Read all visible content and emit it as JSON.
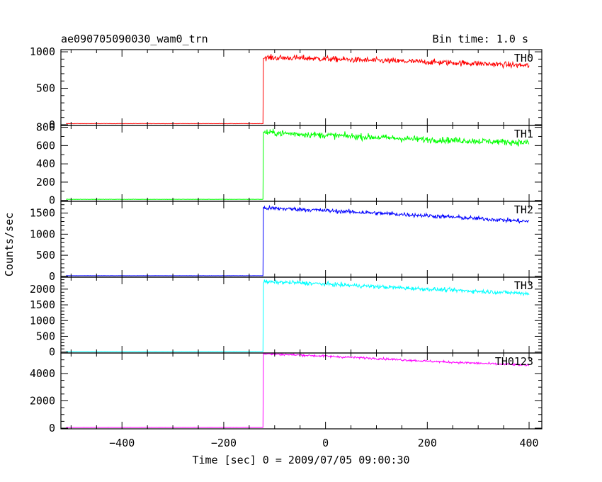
{
  "chart_data": {
    "type": "line",
    "title": "ae090705090030_wam0_trn",
    "subtitle": "Bin time: 1.0 s",
    "xlabel": "Time [sec] 0 = 2009/07/05 09:00:30",
    "ylabel": "Counts/sec",
    "xlim": [
      -520,
      425
    ],
    "x_ticks": [
      -400,
      -200,
      0,
      200,
      400
    ],
    "x_tick_labels": [
      "−400",
      "−200",
      "0",
      "200",
      "400"
    ],
    "grid": false,
    "legend": "per-panel label top-right",
    "trigger_time": -122,
    "data_start": -510,
    "data_end": 400,
    "panels": [
      {
        "name": "TH0",
        "color": "#ff0000",
        "ylim": [
          -10,
          1030
        ],
        "yticks": [
          0,
          500,
          1000
        ],
        "yticks_minor": [
          100,
          200,
          300,
          400,
          600,
          700,
          800,
          900
        ],
        "pre_level": 15,
        "profile": [
          [
            -122,
            920
          ],
          [
            -50,
            915
          ],
          [
            100,
            880
          ],
          [
            200,
            860
          ],
          [
            300,
            840
          ],
          [
            400,
            810
          ]
        ],
        "noise": 40
      },
      {
        "name": "TH1",
        "color": "#00ff00",
        "ylim": [
          -10,
          820
        ],
        "yticks": [
          0,
          200,
          400,
          600,
          800
        ],
        "yticks_minor": [
          100,
          300,
          500,
          700
        ],
        "pre_level": 12,
        "profile": [
          [
            -122,
            745
          ],
          [
            -50,
            725
          ],
          [
            100,
            690
          ],
          [
            200,
            665
          ],
          [
            300,
            650
          ],
          [
            400,
            630
          ]
        ],
        "noise": 35
      },
      {
        "name": "TH2",
        "color": "#0000ff",
        "ylim": [
          -20,
          1780
        ],
        "yticks": [
          0,
          500,
          1000,
          1500
        ],
        "yticks_minor": [
          100,
          200,
          300,
          400,
          600,
          700,
          800,
          900,
          1100,
          1200,
          1300,
          1400,
          1600,
          1700
        ],
        "pre_level": 15,
        "profile": [
          [
            -122,
            1620
          ],
          [
            -50,
            1590
          ],
          [
            100,
            1500
          ],
          [
            200,
            1440
          ],
          [
            300,
            1370
          ],
          [
            400,
            1300
          ]
        ],
        "noise": 50
      },
      {
        "name": "TH3",
        "color": "#00ffff",
        "ylim": [
          -30,
          2380
        ],
        "yticks": [
          0,
          500,
          1000,
          1500,
          2000
        ],
        "yticks_minor": [
          100,
          200,
          300,
          400,
          600,
          700,
          800,
          900,
          1100,
          1200,
          1300,
          1400,
          1600,
          1700,
          1800,
          1900,
          2100,
          2200,
          2300
        ],
        "pre_level": 15,
        "profile": [
          [
            -122,
            2230
          ],
          [
            -50,
            2200
          ],
          [
            100,
            2080
          ],
          [
            200,
            2000
          ],
          [
            300,
            1930
          ],
          [
            400,
            1860
          ]
        ],
        "noise": 65
      },
      {
        "name": "TH0123",
        "color": "#ff00ff",
        "ylim": [
          -50,
          5500
        ],
        "yticks": [
          0,
          2000,
          4000
        ],
        "yticks_minor": [
          500,
          1000,
          1500,
          2500,
          3000,
          3500,
          4500,
          5000
        ],
        "pre_level": 50,
        "profile": [
          [
            -122,
            5450
          ],
          [
            -50,
            5350
          ],
          [
            100,
            5100
          ],
          [
            200,
            4900
          ],
          [
            300,
            4750
          ],
          [
            400,
            4600
          ]
        ],
        "noise": 80
      }
    ]
  }
}
